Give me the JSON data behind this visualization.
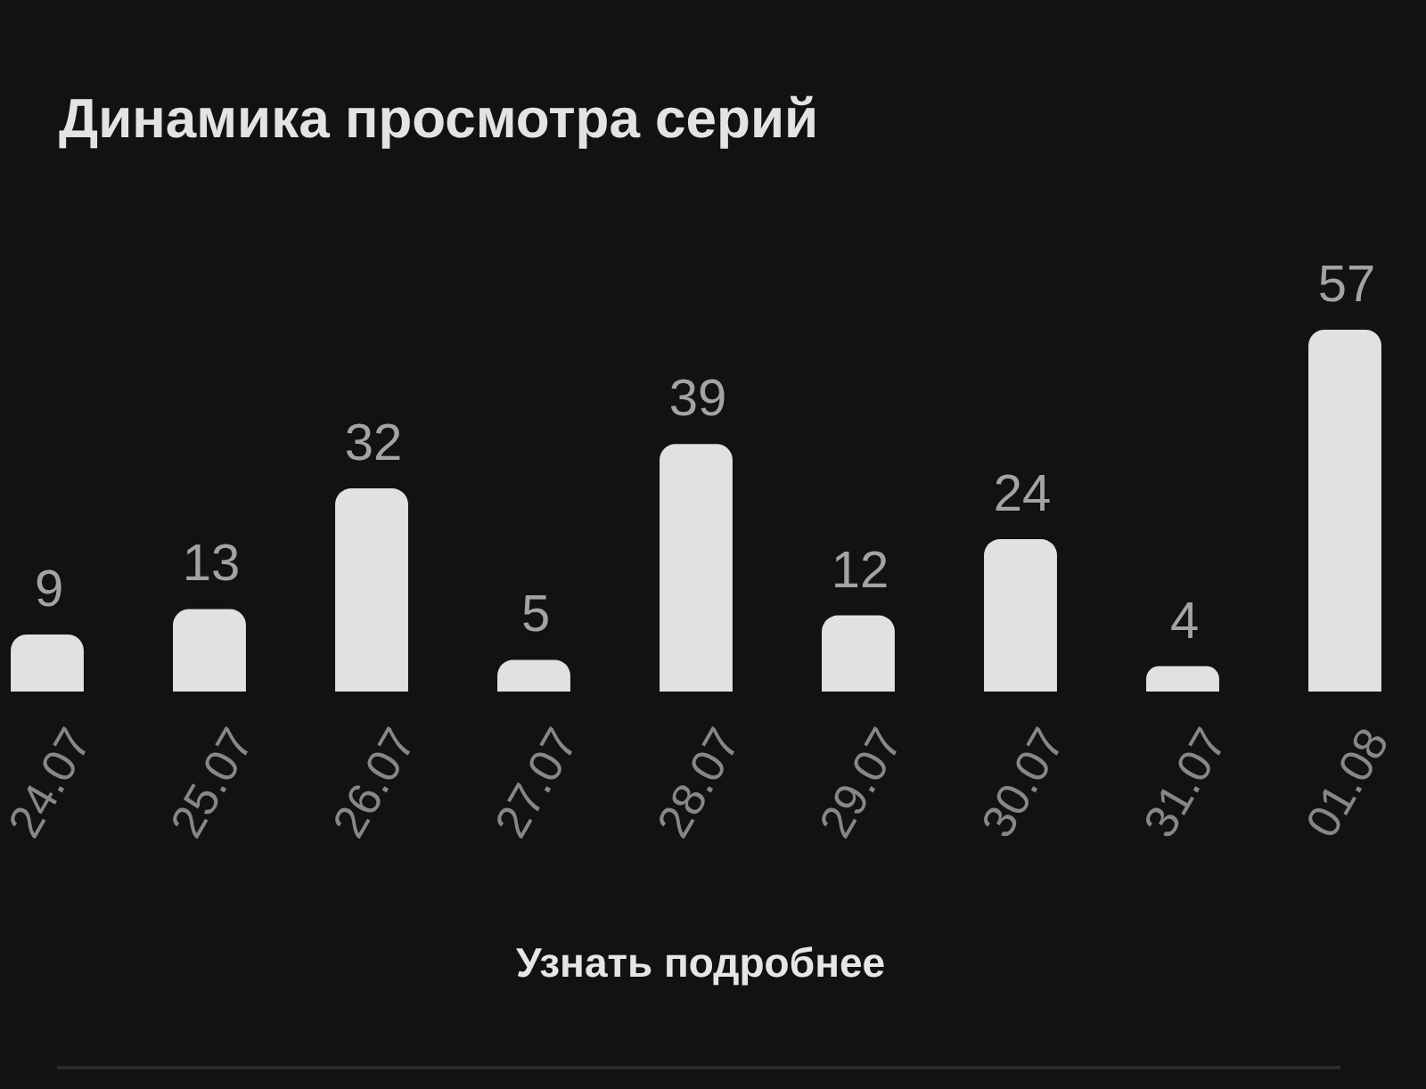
{
  "chart_data": {
    "type": "bar",
    "title": "Динамика просмотра серий",
    "categories": [
      "24.07",
      "25.07",
      "26.07",
      "27.07",
      "28.07",
      "29.07",
      "30.07",
      "31.07",
      "01.08"
    ],
    "values": [
      9,
      13,
      32,
      5,
      39,
      12,
      24,
      4,
      57
    ],
    "color": "#e1e1e1",
    "data_labels": true,
    "tick_labels": "x",
    "annotations": [
      "Узнать подробнее"
    ]
  }
}
